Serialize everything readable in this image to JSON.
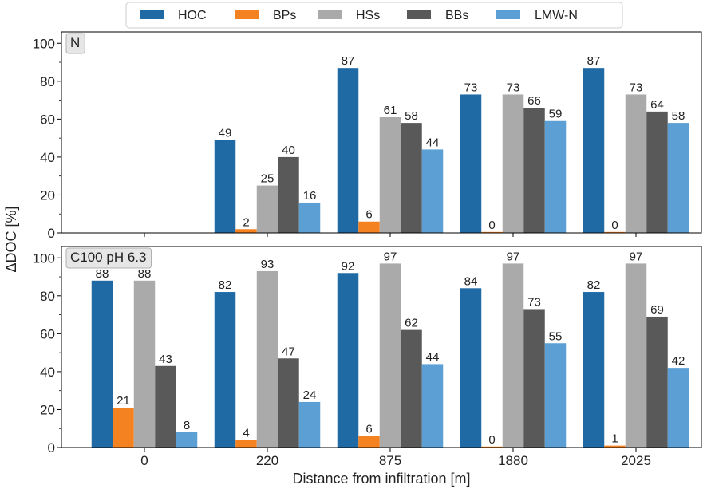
{
  "chart_data": {
    "type": "bar",
    "legend": {
      "placement": "top-center",
      "entries": [
        "HOC",
        "BPs",
        "HSs",
        "BBs",
        "LMW-N"
      ]
    },
    "colors": {
      "HOC": "#1f6aa5",
      "BPs": "#f58220",
      "HSs": "#aaaaaa",
      "BBs": "#595959",
      "LMW-N": "#5b9fd4"
    },
    "xlabel": "Distance from infiltration [m]",
    "ylabel": "ΔDOC [%]",
    "categories": [
      "0",
      "220",
      "875",
      "1880",
      "2025"
    ],
    "ylim": [
      0,
      106
    ],
    "yticks": [
      0,
      20,
      40,
      60,
      80,
      100
    ],
    "panels": [
      {
        "label": "N",
        "series": [
          {
            "name": "HOC",
            "values": [
              null,
              49,
              87,
              73,
              87
            ]
          },
          {
            "name": "BPs",
            "values": [
              null,
              2,
              6,
              0,
              0
            ]
          },
          {
            "name": "HSs",
            "values": [
              null,
              25,
              61,
              73,
              73
            ]
          },
          {
            "name": "BBs",
            "values": [
              null,
              40,
              58,
              66,
              64
            ]
          },
          {
            "name": "LMW-N",
            "values": [
              null,
              16,
              44,
              59,
              58
            ]
          }
        ]
      },
      {
        "label": "C100 pH 6.3",
        "series": [
          {
            "name": "HOC",
            "values": [
              88,
              82,
              92,
              84,
              82
            ]
          },
          {
            "name": "BPs",
            "values": [
              21,
              4,
              6,
              0,
              1
            ]
          },
          {
            "name": "HSs",
            "values": [
              88,
              93,
              97,
              97,
              97
            ]
          },
          {
            "name": "BBs",
            "values": [
              43,
              47,
              62,
              73,
              69
            ]
          },
          {
            "name": "LMW-N",
            "values": [
              8,
              24,
              44,
              55,
              42
            ]
          }
        ]
      }
    ]
  }
}
